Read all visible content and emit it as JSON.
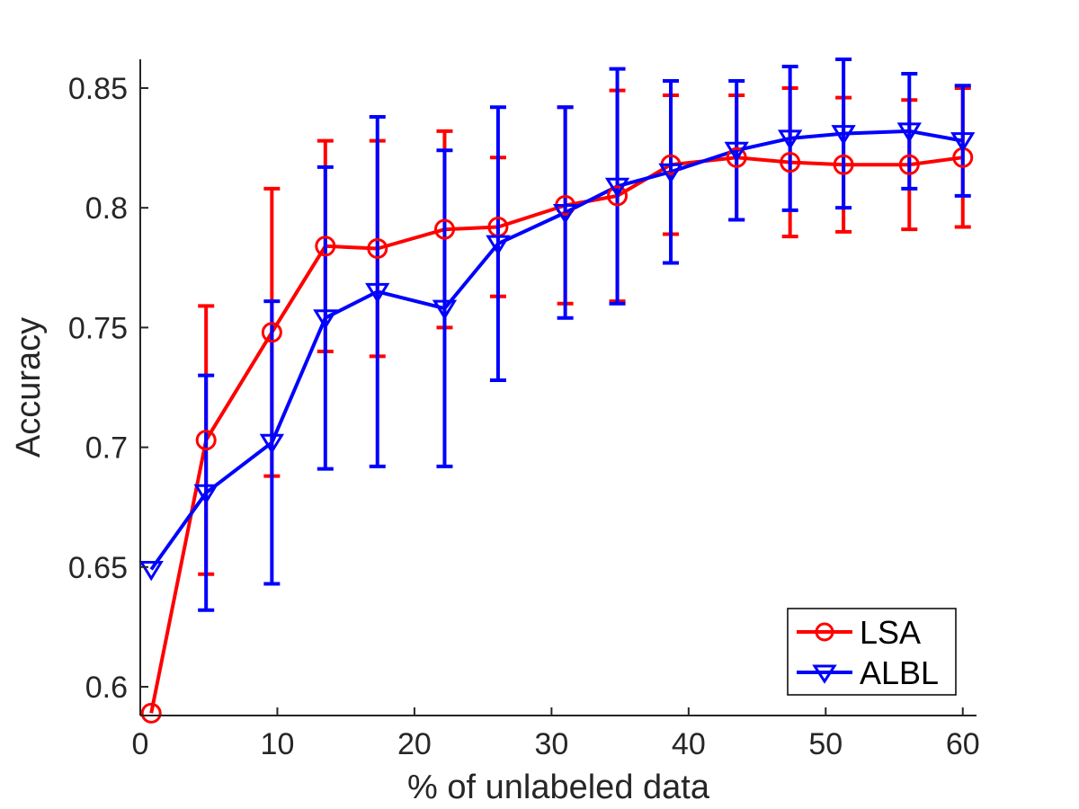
{
  "chart_data": {
    "type": "line",
    "title": "",
    "xlabel": "% of unlabeled data",
    "ylabel": "Accuracy",
    "xlim": [
      0,
      61
    ],
    "ylim": [
      0.588,
      0.862
    ],
    "xticks": [
      0,
      10,
      20,
      30,
      40,
      50,
      60
    ],
    "yticks": [
      0.6,
      0.65,
      0.7,
      0.75,
      0.8,
      0.85
    ],
    "ytick_labels": [
      "0.6",
      "0.65",
      "0.7",
      "0.75",
      "0.8",
      "0.85"
    ],
    "grid": false,
    "legend_position": "bottom-right",
    "series": [
      {
        "name": "LSA",
        "color": "#ff0000",
        "marker": "circle",
        "x": [
          0.8,
          4.8,
          9.6,
          13.5,
          17.3,
          22.2,
          26.1,
          31.0,
          34.8,
          38.7,
          43.5,
          47.4,
          51.3,
          56.1,
          60.0
        ],
        "y": [
          0.589,
          0.703,
          0.748,
          0.784,
          0.783,
          0.791,
          0.792,
          0.801,
          0.805,
          0.818,
          0.821,
          0.819,
          0.818,
          0.818,
          0.821
        ],
        "err": [
          null,
          0.056,
          0.06,
          0.044,
          0.045,
          0.041,
          0.029,
          0.041,
          0.044,
          0.029,
          0.026,
          0.031,
          0.028,
          0.027,
          0.029
        ]
      },
      {
        "name": "ALBL",
        "color": "#0000ff",
        "marker": "triangle-down",
        "x": [
          0.8,
          4.8,
          9.6,
          13.5,
          17.3,
          22.2,
          26.1,
          31.0,
          34.8,
          38.7,
          43.5,
          47.4,
          51.3,
          56.1,
          60.0
        ],
        "y": [
          0.649,
          0.681,
          0.702,
          0.754,
          0.765,
          0.758,
          0.785,
          0.798,
          0.809,
          0.815,
          0.824,
          0.829,
          0.831,
          0.832,
          0.828
        ],
        "err": [
          null,
          0.049,
          0.059,
          0.063,
          0.073,
          0.066,
          0.057,
          0.044,
          0.049,
          0.038,
          0.029,
          0.03,
          0.031,
          0.024,
          0.023
        ]
      }
    ]
  }
}
